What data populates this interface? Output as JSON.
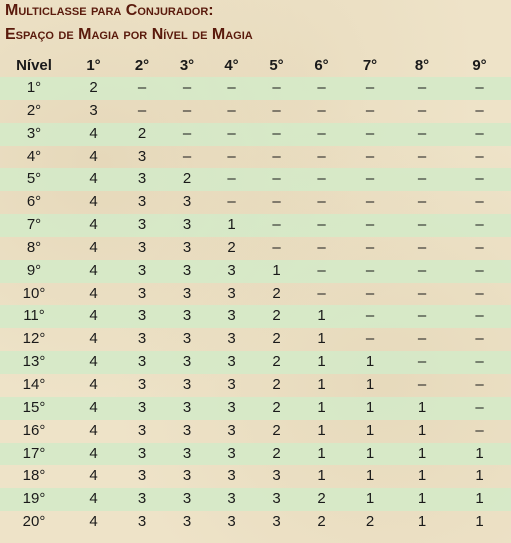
{
  "title_line1": "Multiclasse para Conjurador:",
  "title_line2": "Espaço de Magia por Nível de Magia",
  "columns": [
    "Nível",
    "1°",
    "2°",
    "3°",
    "4°",
    "5°",
    "6°",
    "7°",
    "8°",
    "9°"
  ],
  "rows": [
    [
      "1°",
      "2",
      "–",
      "–",
      "–",
      "–",
      "–",
      "–",
      "–",
      "–"
    ],
    [
      "2°",
      "3",
      "–",
      "–",
      "–",
      "–",
      "–",
      "–",
      "–",
      "–"
    ],
    [
      "3°",
      "4",
      "2",
      "–",
      "–",
      "–",
      "–",
      "–",
      "–",
      "–"
    ],
    [
      "4°",
      "4",
      "3",
      "–",
      "–",
      "–",
      "–",
      "–",
      "–",
      "–"
    ],
    [
      "5°",
      "4",
      "3",
      "2",
      "–",
      "–",
      "–",
      "–",
      "–",
      "–"
    ],
    [
      "6°",
      "4",
      "3",
      "3",
      "–",
      "–",
      "–",
      "–",
      "–",
      "–"
    ],
    [
      "7°",
      "4",
      "3",
      "3",
      "1",
      "–",
      "–",
      "–",
      "–",
      "–"
    ],
    [
      "8°",
      "4",
      "3",
      "3",
      "2",
      "–",
      "–",
      "–",
      "–",
      "–"
    ],
    [
      "9°",
      "4",
      "3",
      "3",
      "3",
      "1",
      "–",
      "–",
      "–",
      "–"
    ],
    [
      "10°",
      "4",
      "3",
      "3",
      "3",
      "2",
      "–",
      "–",
      "–",
      "–"
    ],
    [
      "11°",
      "4",
      "3",
      "3",
      "3",
      "2",
      "1",
      "–",
      "–",
      "–"
    ],
    [
      "12°",
      "4",
      "3",
      "3",
      "3",
      "2",
      "1",
      "–",
      "–",
      "–"
    ],
    [
      "13°",
      "4",
      "3",
      "3",
      "3",
      "2",
      "1",
      "1",
      "–",
      "–"
    ],
    [
      "14°",
      "4",
      "3",
      "3",
      "3",
      "2",
      "1",
      "1",
      "–",
      "–"
    ],
    [
      "15°",
      "4",
      "3",
      "3",
      "3",
      "2",
      "1",
      "1",
      "1",
      "–"
    ],
    [
      "16°",
      "4",
      "3",
      "3",
      "3",
      "2",
      "1",
      "1",
      "1",
      "–"
    ],
    [
      "17°",
      "4",
      "3",
      "3",
      "3",
      "2",
      "1",
      "1",
      "1",
      "1"
    ],
    [
      "18°",
      "4",
      "3",
      "3",
      "3",
      "3",
      "1",
      "1",
      "1",
      "1"
    ],
    [
      "19°",
      "4",
      "3",
      "3",
      "3",
      "3",
      "2",
      "1",
      "1",
      "1"
    ],
    [
      "20°",
      "4",
      "3",
      "3",
      "3",
      "3",
      "2",
      "2",
      "1",
      "1"
    ]
  ],
  "colors": {
    "title": "#5a1a0c",
    "stripe": "#d5e9c8",
    "background": "#eee3c8"
  }
}
